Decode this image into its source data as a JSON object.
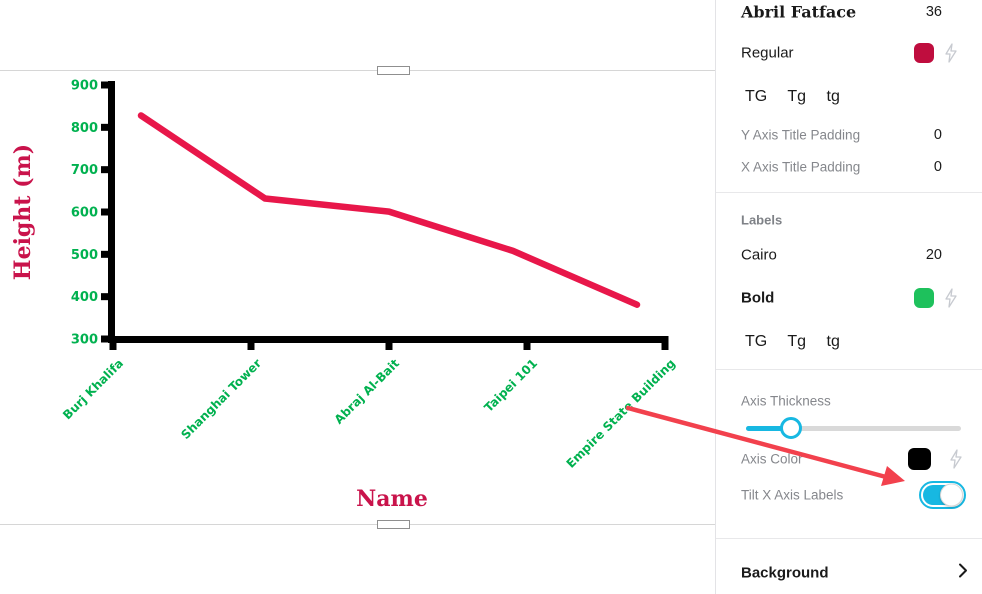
{
  "chart_data": {
    "type": "line",
    "categories": [
      "Burj Khalifa",
      "Shanghai Tower",
      "Abraj Al-Bait",
      "Taipei 101",
      "Empire State Building"
    ],
    "values": [
      828,
      632,
      601,
      508,
      381
    ],
    "xlabel": "Name",
    "ylabel": "Height (m)",
    "ylim": [
      300,
      900
    ],
    "yticks": [
      300,
      400,
      500,
      600,
      700,
      800,
      900
    ],
    "grid": false,
    "legend": false,
    "line_color": "#e8174a",
    "title_color": "#c9134b",
    "label_color": "#00b14f",
    "axis_color": "#000000"
  },
  "panel": {
    "title_section": {
      "font_name": "Abril Fatface",
      "font_size": "36",
      "weight": "Regular",
      "weight_color": "#bf0d3e",
      "case_options": [
        "TG",
        "Tg",
        "tg"
      ],
      "rows": [
        {
          "label": "Y Axis Title Padding",
          "value": "0"
        },
        {
          "label": "X Axis Title Padding",
          "value": "0"
        }
      ]
    },
    "labels_section": {
      "header": "Labels",
      "font_name": "Cairo",
      "font_size": "20",
      "weight": "Bold",
      "weight_color": "#1ec15c",
      "case_options": [
        "TG",
        "Tg",
        "tg"
      ]
    },
    "axis_section": {
      "thickness_label": "Axis Thickness",
      "thickness_percent": 21,
      "color_label": "Axis Color",
      "color_value": "#000000",
      "tilt_label": "Tilt X Axis Labels",
      "tilt_on": true,
      "accent": "#17b8e2"
    },
    "background_section": {
      "label": "Background"
    }
  },
  "annotation": {
    "arrow_color": "#f2414d"
  }
}
